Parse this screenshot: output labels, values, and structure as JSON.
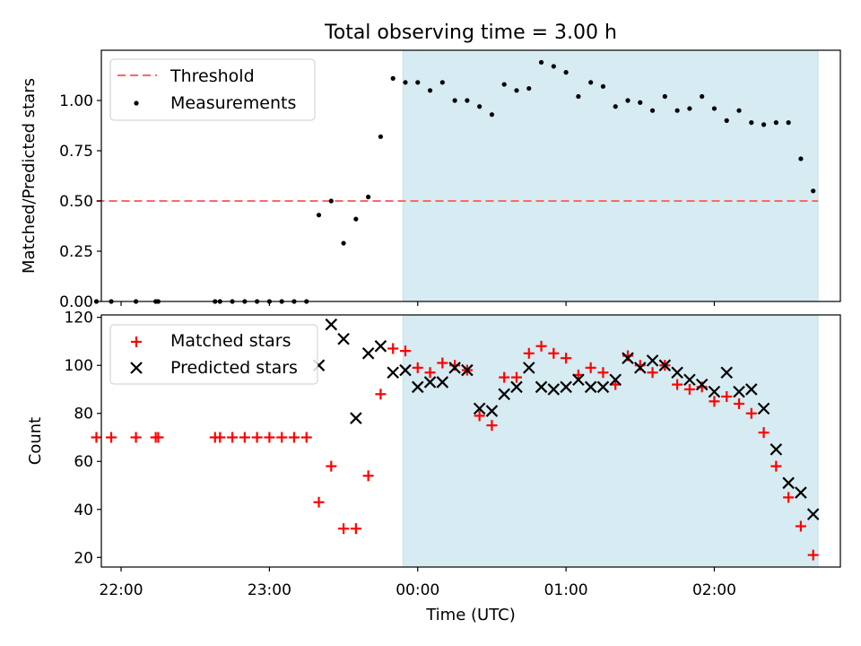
{
  "title": "Total observing time = 3.00 h",
  "xlabel": "Time (UTC)",
  "x_ticks": [
    "22:00",
    "23:00",
    "00:00",
    "01:00",
    "02:00"
  ],
  "colors": {
    "shade": "#add8e6",
    "threshold": "#ff6666",
    "measurement": "#000000",
    "matched": "#ff0000",
    "predicted": "#000000"
  },
  "chart_data": [
    {
      "type": "scatter",
      "ylabel": "Matched/Predicted stars",
      "xlim": [
        "21:52",
        "02:51"
      ],
      "ylim": [
        0,
        1.25
      ],
      "y_ticks": [
        "0.00",
        "0.25",
        "0.50",
        "0.75",
        "1.00"
      ],
      "grid": false,
      "legend_position": "top-left",
      "shaded_region": {
        "from": "23:54",
        "to": "02:42"
      },
      "threshold": {
        "name": "Threshold",
        "value": 0.5,
        "from": "21:50",
        "to": "02:42"
      },
      "series": [
        {
          "name": "Measurements",
          "points": [
            [
              "21:50",
              0
            ],
            [
              "21:56",
              0
            ],
            [
              "22:06",
              0
            ],
            [
              "22:14",
              0
            ],
            [
              "22:15",
              0
            ],
            [
              "22:38",
              0
            ],
            [
              "22:40",
              0
            ],
            [
              "22:45",
              0
            ],
            [
              "22:50",
              0
            ],
            [
              "22:55",
              0
            ],
            [
              "23:00",
              0
            ],
            [
              "23:05",
              0
            ],
            [
              "23:10",
              0
            ],
            [
              "23:15",
              0
            ],
            [
              "23:20",
              0.43
            ],
            [
              "23:25",
              0.5
            ],
            [
              "23:30",
              0.29
            ],
            [
              "23:35",
              0.41
            ],
            [
              "23:40",
              0.52
            ],
            [
              "23:45",
              0.82
            ],
            [
              "23:50",
              1.11
            ],
            [
              "23:55",
              1.09
            ],
            [
              "00:00",
              1.09
            ],
            [
              "00:05",
              1.05
            ],
            [
              "00:10",
              1.09
            ],
            [
              "00:15",
              1.0
            ],
            [
              "00:20",
              1.0
            ],
            [
              "00:25",
              0.97
            ],
            [
              "00:30",
              0.93
            ],
            [
              "00:35",
              1.08
            ],
            [
              "00:40",
              1.05
            ],
            [
              "00:45",
              1.06
            ],
            [
              "00:50",
              1.19
            ],
            [
              "00:55",
              1.17
            ],
            [
              "01:00",
              1.14
            ],
            [
              "01:05",
              1.02
            ],
            [
              "01:10",
              1.09
            ],
            [
              "01:15",
              1.07
            ],
            [
              "01:20",
              0.97
            ],
            [
              "01:25",
              1.0
            ],
            [
              "01:30",
              0.99
            ],
            [
              "01:35",
              0.95
            ],
            [
              "01:40",
              1.02
            ],
            [
              "01:45",
              0.95
            ],
            [
              "01:50",
              0.96
            ],
            [
              "01:55",
              1.02
            ],
            [
              "02:00",
              0.96
            ],
            [
              "02:05",
              0.9
            ],
            [
              "02:10",
              0.95
            ],
            [
              "02:15",
              0.89
            ],
            [
              "02:20",
              0.88
            ],
            [
              "02:25",
              0.89
            ],
            [
              "02:30",
              0.89
            ],
            [
              "02:35",
              0.71
            ],
            [
              "02:40",
              0.55
            ]
          ]
        }
      ]
    },
    {
      "type": "scatter",
      "ylabel": "Count",
      "xlim": [
        "21:52",
        "02:51"
      ],
      "ylim": [
        16,
        121
      ],
      "y_ticks": [
        "20",
        "40",
        "60",
        "80",
        "100",
        "120"
      ],
      "grid": false,
      "legend_position": "top-left",
      "shaded_region": {
        "from": "23:54",
        "to": "02:42"
      },
      "series": [
        {
          "name": "Matched stars",
          "marker": "+",
          "points": [
            [
              "21:50",
              70
            ],
            [
              "21:56",
              70
            ],
            [
              "22:06",
              70
            ],
            [
              "22:14",
              70
            ],
            [
              "22:15",
              70
            ],
            [
              "22:38",
              70
            ],
            [
              "22:40",
              70
            ],
            [
              "22:45",
              70
            ],
            [
              "22:50",
              70
            ],
            [
              "22:55",
              70
            ],
            [
              "23:00",
              70
            ],
            [
              "23:05",
              70
            ],
            [
              "23:10",
              70
            ],
            [
              "23:15",
              70
            ],
            [
              "23:20",
              43
            ],
            [
              "23:25",
              58
            ],
            [
              "23:30",
              32
            ],
            [
              "23:35",
              32
            ],
            [
              "23:40",
              54
            ],
            [
              "23:45",
              88
            ],
            [
              "23:50",
              107
            ],
            [
              "23:55",
              106
            ],
            [
              "00:00",
              99
            ],
            [
              "00:05",
              97
            ],
            [
              "00:10",
              101
            ],
            [
              "00:15",
              100
            ],
            [
              "00:20",
              98
            ],
            [
              "00:25",
              79
            ],
            [
              "00:30",
              75
            ],
            [
              "00:35",
              95
            ],
            [
              "00:40",
              95
            ],
            [
              "00:45",
              105
            ],
            [
              "00:50",
              108
            ],
            [
              "00:55",
              105
            ],
            [
              "01:00",
              103
            ],
            [
              "01:05",
              96
            ],
            [
              "01:10",
              99
            ],
            [
              "01:15",
              97
            ],
            [
              "01:20",
              92
            ],
            [
              "01:25",
              104
            ],
            [
              "01:30",
              100
            ],
            [
              "01:35",
              97
            ],
            [
              "01:40",
              100
            ],
            [
              "01:45",
              92
            ],
            [
              "01:50",
              90
            ],
            [
              "01:55",
              91
            ],
            [
              "02:00",
              85
            ],
            [
              "02:05",
              87
            ],
            [
              "02:10",
              84
            ],
            [
              "02:15",
              80
            ],
            [
              "02:20",
              72
            ],
            [
              "02:25",
              58
            ],
            [
              "02:30",
              45
            ],
            [
              "02:35",
              33
            ],
            [
              "02:40",
              21
            ]
          ]
        },
        {
          "name": "Predicted stars",
          "marker": "x",
          "points": [
            [
              "23:20",
              100
            ],
            [
              "23:25",
              117
            ],
            [
              "23:30",
              111
            ],
            [
              "23:35",
              78
            ],
            [
              "23:40",
              105
            ],
            [
              "23:45",
              108
            ],
            [
              "23:50",
              97
            ],
            [
              "23:55",
              98
            ],
            [
              "00:00",
              91
            ],
            [
              "00:05",
              93
            ],
            [
              "00:10",
              93
            ],
            [
              "00:15",
              99
            ],
            [
              "00:20",
              98
            ],
            [
              "00:25",
              82
            ],
            [
              "00:30",
              81
            ],
            [
              "00:35",
              88
            ],
            [
              "00:40",
              91
            ],
            [
              "00:45",
              99
            ],
            [
              "00:50",
              91
            ],
            [
              "00:55",
              90
            ],
            [
              "01:00",
              91
            ],
            [
              "01:05",
              94
            ],
            [
              "01:10",
              91
            ],
            [
              "01:15",
              91
            ],
            [
              "01:20",
              94
            ],
            [
              "01:25",
              103
            ],
            [
              "01:30",
              99
            ],
            [
              "01:35",
              102
            ],
            [
              "01:40",
              100
            ],
            [
              "01:45",
              97
            ],
            [
              "01:50",
              94
            ],
            [
              "01:55",
              92
            ],
            [
              "02:00",
              89
            ],
            [
              "02:05",
              97
            ],
            [
              "02:10",
              89
            ],
            [
              "02:15",
              90
            ],
            [
              "02:20",
              82
            ],
            [
              "02:25",
              65
            ],
            [
              "02:30",
              51
            ],
            [
              "02:35",
              47
            ],
            [
              "02:40",
              38
            ]
          ]
        }
      ]
    }
  ]
}
